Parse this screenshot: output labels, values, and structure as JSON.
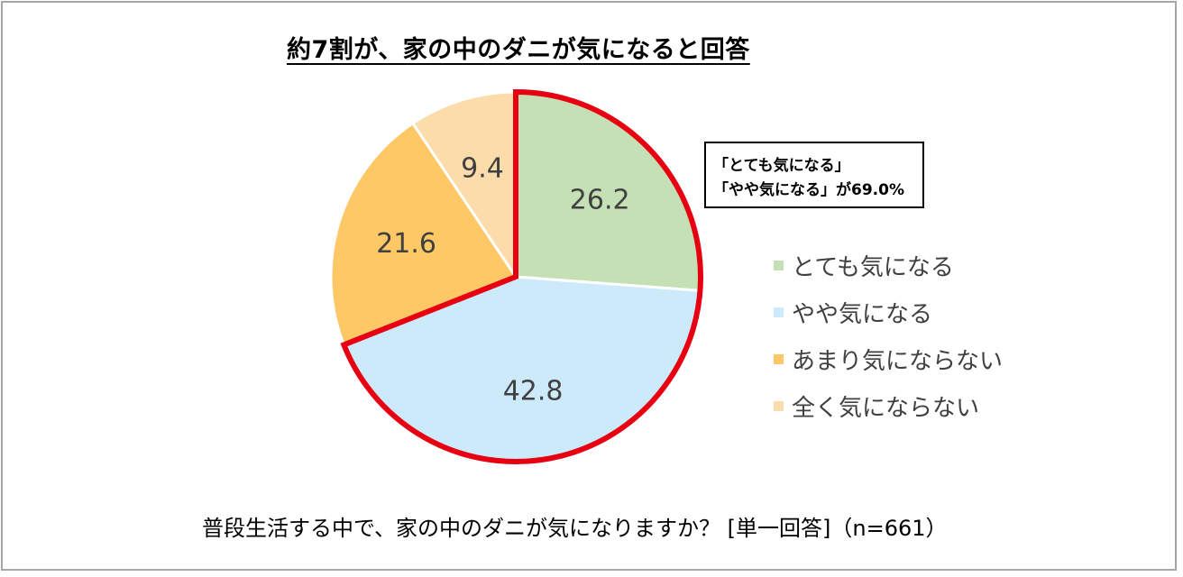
{
  "title": "約7割が、家の中のダニが気になると回答",
  "callout": {
    "line1": "「とても気になる」",
    "line2": "「やや気になる」が69.0%"
  },
  "caption": "普段生活する中で、家の中のダニが気になりますか？ [単一回答]（n=661）",
  "colors": {
    "highlight_border": "#e60012",
    "slice_border": "#ffffff"
  },
  "chart_data": {
    "type": "pie",
    "title": "約7割が、家の中のダニが気になると回答",
    "categories": [
      "とても気になる",
      "やや気になる",
      "あまり気にならない",
      "全く気にならない"
    ],
    "values": [
      26.2,
      42.8,
      21.6,
      9.4
    ],
    "data_labels": [
      "26.2",
      "42.8",
      "21.6",
      "9.4"
    ],
    "colors": [
      "#c5e0b4",
      "#cdeafb",
      "#fdc865",
      "#fddcab"
    ],
    "start_angle_deg": 0,
    "direction": "clockwise",
    "legend_position": "right",
    "highlighted_categories": [
      "とても気になる",
      "やや気になる"
    ],
    "highlight_total": "69.0%"
  }
}
